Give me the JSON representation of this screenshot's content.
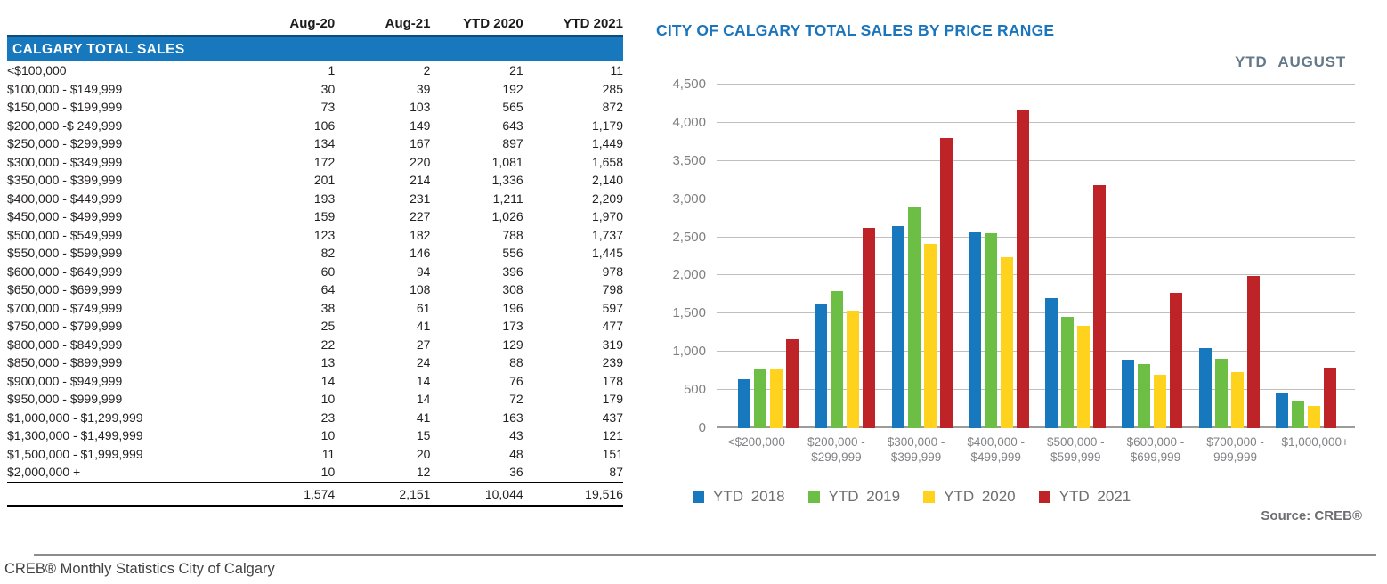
{
  "table": {
    "banner": "CALGARY TOTAL SALES",
    "columns": [
      "Aug-20",
      "Aug-21",
      "YTD 2020",
      "YTD 2021"
    ],
    "rows": [
      {
        "label": "<$100,000",
        "values": [
          "1",
          "2",
          "21",
          "11"
        ]
      },
      {
        "label": "$100,000 - $149,999",
        "values": [
          "30",
          "39",
          "192",
          "285"
        ]
      },
      {
        "label": "$150,000 - $199,999",
        "values": [
          "73",
          "103",
          "565",
          "872"
        ]
      },
      {
        "label": "$200,000 -$ 249,999",
        "values": [
          "106",
          "149",
          "643",
          "1,179"
        ]
      },
      {
        "label": "$250,000 - $299,999",
        "values": [
          "134",
          "167",
          "897",
          "1,449"
        ]
      },
      {
        "label": "$300,000 - $349,999",
        "values": [
          "172",
          "220",
          "1,081",
          "1,658"
        ]
      },
      {
        "label": "$350,000 - $399,999",
        "values": [
          "201",
          "214",
          "1,336",
          "2,140"
        ]
      },
      {
        "label": "$400,000 - $449,999",
        "values": [
          "193",
          "231",
          "1,211",
          "2,209"
        ]
      },
      {
        "label": "$450,000 - $499,999",
        "values": [
          "159",
          "227",
          "1,026",
          "1,970"
        ]
      },
      {
        "label": "$500,000 - $549,999",
        "values": [
          "123",
          "182",
          "788",
          "1,737"
        ]
      },
      {
        "label": "$550,000 - $599,999",
        "values": [
          "82",
          "146",
          "556",
          "1,445"
        ]
      },
      {
        "label": "$600,000 - $649,999",
        "values": [
          "60",
          "94",
          "396",
          "978"
        ]
      },
      {
        "label": "$650,000 - $699,999",
        "values": [
          "64",
          "108",
          "308",
          "798"
        ]
      },
      {
        "label": "$700,000 - $749,999",
        "values": [
          "38",
          "61",
          "196",
          "597"
        ]
      },
      {
        "label": "$750,000 - $799,999",
        "values": [
          "25",
          "41",
          "173",
          "477"
        ]
      },
      {
        "label": "$800,000 - $849,999",
        "values": [
          "22",
          "27",
          "129",
          "319"
        ]
      },
      {
        "label": "$850,000 - $899,999",
        "values": [
          "13",
          "24",
          "88",
          "239"
        ]
      },
      {
        "label": "$900,000 - $949,999",
        "values": [
          "14",
          "14",
          "76",
          "178"
        ]
      },
      {
        "label": "$950,000 - $999,999",
        "values": [
          "10",
          "14",
          "72",
          "179"
        ]
      },
      {
        "label": "$1,000,000 - $1,299,999",
        "values": [
          "23",
          "41",
          "163",
          "437"
        ]
      },
      {
        "label": "$1,300,000 - $1,499,999",
        "values": [
          "10",
          "15",
          "43",
          "121"
        ]
      },
      {
        "label": "$1,500,000 - $1,999,999",
        "values": [
          "11",
          "20",
          "48",
          "151"
        ]
      },
      {
        "label": "$2,000,000 +",
        "values": [
          "10",
          "12",
          "36",
          "87"
        ]
      }
    ],
    "totals": [
      "1,574",
      "2,151",
      "10,044",
      "19,516"
    ]
  },
  "chart_data": {
    "type": "bar",
    "title": "CITY OF CALGARY TOTAL SALES BY PRICE RANGE",
    "subtitle": "YTD AUGUST",
    "categories": [
      "<$200,000",
      "$200,000 - $299,999",
      "$300,000 - $399,999",
      "$400,000 - $499,999",
      "$500,000 - $599,999",
      "$600,000 - $699,999",
      "$700,000 - 999,999",
      "$1,000,000+"
    ],
    "category_lines": [
      [
        "<$200,000"
      ],
      [
        "$200,000 -",
        "$299,999"
      ],
      [
        "$300,000 -",
        "$399,999"
      ],
      [
        "$400,000 -",
        "$499,999"
      ],
      [
        "$500,000 -",
        "$599,999"
      ],
      [
        "$600,000 -",
        "$699,999"
      ],
      [
        "$700,000 -",
        "999,999"
      ],
      [
        "$1,000,000+"
      ]
    ],
    "series": [
      {
        "name": "YTD 2018",
        "color": "#1878be",
        "values": [
          640,
          1630,
          2650,
          2560,
          1700,
          900,
          1050,
          460
        ]
      },
      {
        "name": "YTD 2019",
        "color": "#6cbe45",
        "values": [
          765,
          1790,
          2890,
          2550,
          1460,
          835,
          905,
          365
        ]
      },
      {
        "name": "YTD 2020",
        "color": "#ffd21e",
        "values": [
          778,
          1540,
          2417,
          2237,
          1344,
          704,
          734,
          290
        ]
      },
      {
        "name": "YTD 2021",
        "color": "#be2328",
        "values": [
          1168,
          2628,
          3798,
          4179,
          3182,
          1776,
          1989,
          796
        ]
      }
    ],
    "ylim": [
      0,
      4500
    ],
    "ytick_step": 500,
    "ytick_labels": [
      "0",
      "500",
      "1,000",
      "1,500",
      "2,000",
      "2,500",
      "3,000",
      "3,500",
      "4,000",
      "4,500"
    ],
    "grid": true,
    "legend_position": "bottom",
    "source": "Source: CREB®"
  },
  "footer": {
    "text": "CREB® Monthly Statistics City of Calgary"
  }
}
